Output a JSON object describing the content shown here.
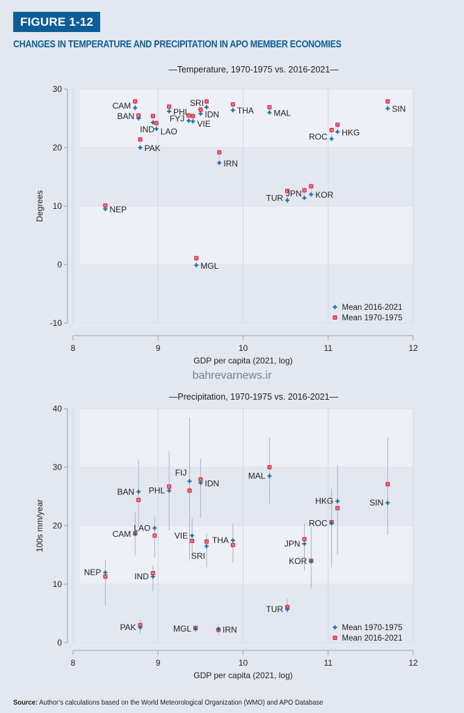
{
  "figure": {
    "badge": "FIGURE 1-12",
    "title": "CHANGES IN TEMPERATURE AND PRECIPITATION IN APO MEMBER ECONOMIES",
    "watermark": "bahrevarnews.ir",
    "source_label": "Source:",
    "source_text": " Author’s calculations based on the World Meteorological Organization (WMO) and APO Database"
  },
  "colors": {
    "blue": "#1f6fa8",
    "red": "#d6213f",
    "band_light": "#edf0f6",
    "band_dark": "#e3e7ef",
    "whisker": "#a8b2c8"
  },
  "chart_data": [
    {
      "type": "scatter",
      "title": "—Temperature, 1970-1975 vs. 2016-2021—",
      "xlabel": "GDP per capita (2021, log)",
      "ylabel": "Degrees",
      "xlim": [
        8,
        12
      ],
      "ylim": [
        -10,
        30
      ],
      "xticks": [
        "8",
        "9",
        "10",
        "11",
        "12"
      ],
      "yticks": [
        "30",
        "20",
        "10",
        "0",
        "-10"
      ],
      "legend_position": "bottom-right",
      "series": [
        {
          "name": "Mean 2016-2021",
          "color": "blue",
          "marker": "plus"
        },
        {
          "name": "Mean 1970-1975",
          "color": "red",
          "marker": "x"
        }
      ],
      "points": [
        {
          "label": "CAM",
          "x": 8.73,
          "blue": 26.8,
          "red": 27.9,
          "side": "left"
        },
        {
          "label": "BAN",
          "x": 8.77,
          "blue": 25.0,
          "red": 25.5,
          "side": "left"
        },
        {
          "label": "IND",
          "x": 8.94,
          "blue": 24.3,
          "red": 25.4,
          "side": "below-left"
        },
        {
          "label": "LAO",
          "x": 8.98,
          "blue": 23.2,
          "red": 24.2,
          "side": "right-low"
        },
        {
          "label": "PAK",
          "x": 8.79,
          "blue": 20.0,
          "red": 21.4,
          "side": "right"
        },
        {
          "label": "PHL",
          "x": 9.13,
          "blue": 26.2,
          "red": 27.0,
          "side": "right"
        },
        {
          "label": "FYJ",
          "x": 9.36,
          "blue": 24.6,
          "red": 25.5,
          "side": "left"
        },
        {
          "label": "VIE",
          "x": 9.41,
          "blue": 24.5,
          "red": 25.4,
          "side": "right-low"
        },
        {
          "label": "IDN",
          "x": 9.5,
          "blue": 25.8,
          "red": 26.5,
          "side": "right"
        },
        {
          "label": "SRI",
          "x": 9.57,
          "blue": 26.9,
          "red": 27.9,
          "side": "left-up"
        },
        {
          "label": "THA",
          "x": 9.88,
          "blue": 26.4,
          "red": 27.4,
          "side": "right"
        },
        {
          "label": "MAL",
          "x": 10.31,
          "blue": 26.0,
          "red": 26.9,
          "side": "right"
        },
        {
          "label": "ROC",
          "x": 11.04,
          "blue": 21.5,
          "red": 23.0,
          "side": "left"
        },
        {
          "label": "HKG",
          "x": 11.11,
          "blue": 22.7,
          "red": 23.9,
          "side": "right"
        },
        {
          "label": "SIN",
          "x": 11.7,
          "blue": 26.7,
          "red": 27.9,
          "side": "right"
        },
        {
          "label": "IRN",
          "x": 9.72,
          "blue": 17.4,
          "red": 19.2,
          "side": "right"
        },
        {
          "label": "NEP",
          "x": 8.38,
          "blue": 9.5,
          "red": 10.1,
          "side": "right"
        },
        {
          "label": "MGL",
          "x": 9.45,
          "blue": -0.1,
          "red": 1.1,
          "side": "right"
        },
        {
          "label": "TUR",
          "x": 10.52,
          "blue": 11.0,
          "red": 12.6,
          "side": "left"
        },
        {
          "label": "JPN",
          "x": 10.72,
          "blue": 11.4,
          "red": 12.7,
          "side": "left-up"
        },
        {
          "label": "KOR",
          "x": 10.8,
          "blue": 12.0,
          "red": 13.4,
          "side": "right"
        }
      ]
    },
    {
      "type": "scatter",
      "title": "—Precipitation, 1970-1975 vs. 2016-2021—",
      "xlabel": "GDP per capita (2021, log)",
      "ylabel": "100s mm/year",
      "xlim": [
        8,
        12
      ],
      "ylim": [
        0,
        40
      ],
      "xticks": [
        "8",
        "9",
        "10",
        "11",
        "12"
      ],
      "yticks": [
        "40",
        "30",
        "20",
        "10",
        "0"
      ],
      "legend_position": "bottom-right",
      "series": [
        {
          "name": "Mean 1970-1975",
          "color": "blue",
          "marker": "plus"
        },
        {
          "name": "Mean 2016-2021",
          "color": "red",
          "marker": "x"
        }
      ],
      "points": [
        {
          "label": "BAN",
          "x": 8.77,
          "blue": 25.8,
          "red": 24.4,
          "lo": 19.8,
          "hi": 31.3,
          "side": "left"
        },
        {
          "label": "PHL",
          "x": 9.13,
          "blue": 26.0,
          "red": 26.7,
          "lo": 19.2,
          "hi": 32.7,
          "side": "left"
        },
        {
          "label": "FIJ",
          "x": 9.37,
          "blue": 27.6,
          "red": 26.0,
          "lo": 14.0,
          "hi": 38.5,
          "side": "left-up"
        },
        {
          "label": "IDN",
          "x": 9.5,
          "blue": 27.3,
          "red": 27.9,
          "lo": 21.3,
          "hi": 31.5,
          "side": "right"
        },
        {
          "label": "MAL",
          "x": 10.31,
          "blue": 28.5,
          "red": 30.0,
          "lo": 23.7,
          "hi": 35.1,
          "side": "left"
        },
        {
          "label": "HKG",
          "x": 11.11,
          "blue": 24.2,
          "red": 23.0,
          "lo": 15.0,
          "hi": 30.4,
          "side": "left"
        },
        {
          "label": "SIN",
          "x": 11.7,
          "blue": 23.9,
          "red": 27.1,
          "lo": 18.5,
          "hi": 35.1,
          "side": "left"
        },
        {
          "label": "ROC",
          "x": 11.04,
          "blue": 20.4,
          "red": 20.6,
          "lo": 12.9,
          "hi": 26.3,
          "side": "left"
        },
        {
          "label": "CAM",
          "x": 8.73,
          "blue": 18.6,
          "red": 18.7,
          "lo": 14.9,
          "hi": 22.4,
          "side": "left"
        },
        {
          "label": "LAO",
          "x": 8.96,
          "blue": 19.6,
          "red": 18.3,
          "lo": 14.6,
          "hi": 21.5,
          "side": "left"
        },
        {
          "label": "VIE",
          "x": 9.4,
          "blue": 18.3,
          "red": 17.4,
          "lo": 14.4,
          "hi": 21.3,
          "side": "left"
        },
        {
          "label": "SRI",
          "x": 9.57,
          "blue": 16.5,
          "red": 17.3,
          "lo": 12.9,
          "hi": 18.6,
          "side": "below-left"
        },
        {
          "label": "THA",
          "x": 9.88,
          "blue": 17.5,
          "red": 16.7,
          "lo": 13.7,
          "hi": 20.4,
          "side": "left"
        },
        {
          "label": "NEP",
          "x": 8.38,
          "blue": 12.0,
          "red": 11.3,
          "lo": 6.3,
          "hi": 14.2,
          "side": "left"
        },
        {
          "label": "IND",
          "x": 8.94,
          "blue": 11.3,
          "red": 11.9,
          "lo": 8.8,
          "hi": 13.2,
          "side": "left"
        },
        {
          "label": "JPN",
          "x": 10.72,
          "blue": 16.9,
          "red": 17.7,
          "lo": 12.3,
          "hi": 20.4,
          "side": "left"
        },
        {
          "label": "KOR",
          "x": 10.8,
          "blue": 13.9,
          "red": 14.0,
          "lo": 9.3,
          "hi": 19.8,
          "side": "left"
        },
        {
          "label": "PAK",
          "x": 8.79,
          "blue": 2.6,
          "red": 3.0,
          "lo": 1.5,
          "hi": 3.9,
          "side": "left"
        },
        {
          "label": "MGL",
          "x": 9.44,
          "blue": 2.4,
          "red": 2.5,
          "lo": 1.8,
          "hi": 3.0,
          "side": "left"
        },
        {
          "label": "IRN",
          "x": 9.71,
          "blue": 2.3,
          "red": 2.2,
          "lo": 1.3,
          "hi": 3.1,
          "side": "right"
        },
        {
          "label": "TUR",
          "x": 10.52,
          "blue": 5.7,
          "red": 6.1,
          "lo": 5.1,
          "hi": 7.5,
          "side": "left"
        }
      ]
    }
  ]
}
